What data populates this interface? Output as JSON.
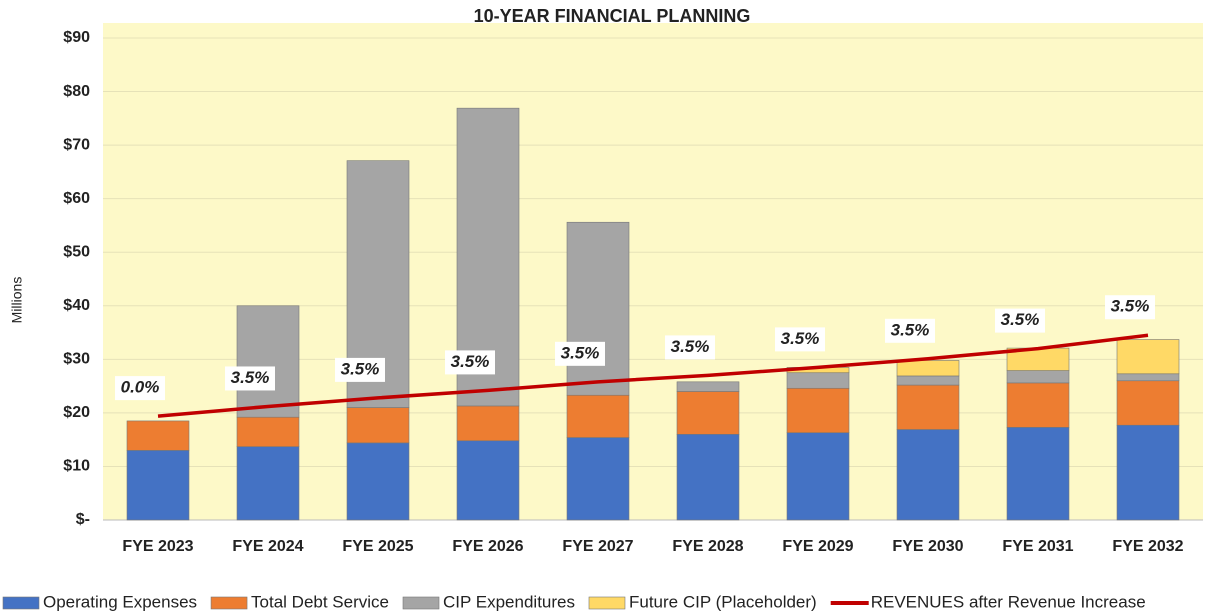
{
  "chart_data": {
    "type": "bar",
    "title": "10-YEAR FINANCIAL PLANNING",
    "y_label": "Millions",
    "stacked": true,
    "categories": [
      "FYE 2023",
      "FYE 2024",
      "FYE 2025",
      "FYE 2026",
      "FYE 2027",
      "FYE 2028",
      "FYE 2029",
      "FYE 2030",
      "FYE 2031",
      "FYE 2032"
    ],
    "series": [
      {
        "name": "Operating Expenses",
        "color": "#4472c4",
        "values": [
          13.0,
          13.7,
          14.4,
          14.8,
          15.4,
          16.0,
          16.3,
          16.9,
          17.3,
          17.7
        ]
      },
      {
        "name": "Total Debt Service",
        "color": "#ed7d31",
        "values": [
          5.5,
          5.5,
          6.6,
          6.5,
          7.9,
          8.0,
          8.3,
          8.3,
          8.3,
          8.3
        ]
      },
      {
        "name": "CIP Expenditures",
        "color": "#a5a5a5",
        "values": [
          0,
          20.8,
          46.1,
          55.6,
          32.3,
          1.8,
          2.9,
          1.7,
          2.3,
          1.3
        ]
      },
      {
        "name": "Future CIP (Placeholder)",
        "color": "#ffd966",
        "values": [
          0,
          0,
          0,
          0,
          0,
          0,
          1.0,
          2.9,
          4.2,
          6.4
        ]
      },
      {
        "name": "REVENUES after Revenue Increase",
        "type": "line",
        "color": "#c00000",
        "values": [
          19.4,
          21.2,
          22.8,
          24.2,
          25.8,
          27.0,
          28.5,
          30.1,
          32.0,
          34.5
        ]
      }
    ],
    "annotations": {
      "values": [
        0.0,
        3.5,
        3.5,
        3.5,
        3.5,
        3.5,
        3.5,
        3.5,
        3.5,
        3.5
      ],
      "value_labels": [
        "0.0%",
        "3.5%",
        "3.5%",
        "3.5%",
        "3.5%",
        "3.5%",
        "3.5%",
        "3.5%",
        "3.5%",
        "3.5%"
      ]
    },
    "ylim": [
      0,
      90
    ],
    "yticks": [
      {
        "value": 0,
        "label": "$-"
      },
      {
        "value": 10,
        "label": "$10"
      },
      {
        "value": 20,
        "label": "$20"
      },
      {
        "value": 30,
        "label": "$30"
      },
      {
        "value": 40,
        "label": "$40"
      },
      {
        "value": 50,
        "label": "$50"
      },
      {
        "value": 60,
        "label": "$60"
      },
      {
        "value": 70,
        "label": "$70"
      },
      {
        "value": 80,
        "label": "$80"
      },
      {
        "value": 90,
        "label": "$90"
      }
    ],
    "grid": true,
    "legend": "bottom",
    "plot_background": "#fdf9c8"
  }
}
